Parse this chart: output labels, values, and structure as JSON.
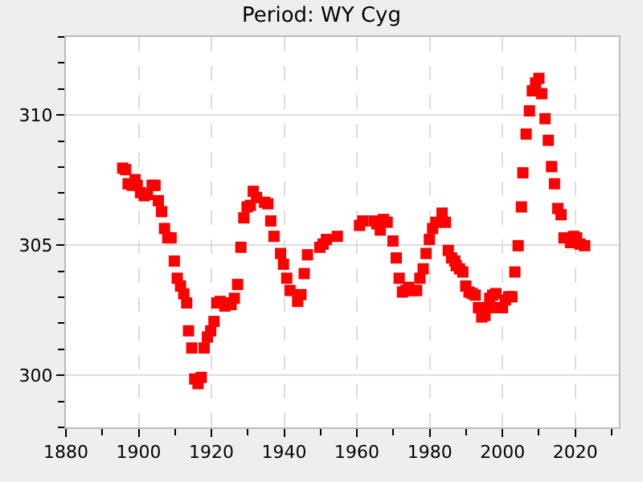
{
  "chart_data": {
    "type": "scatter",
    "title": "Period: WY Cyg",
    "x": [
      1895.6,
      1896.4,
      1897.1,
      1898.2,
      1899.0,
      1899.6,
      1900.5,
      1901.5,
      1902.4,
      1903.7,
      1904.5,
      1905.4,
      1906.3,
      1907.1,
      1908.0,
      1908.9,
      1909.8,
      1910.6,
      1911.5,
      1912.4,
      1913.2,
      1913.7,
      1914.6,
      1915.4,
      1916.3,
      1917.2,
      1918.0,
      1918.9,
      1919.8,
      1920.7,
      1921.5,
      1922.4,
      1923.7,
      1924.6,
      1925.4,
      1926.3,
      1927.2,
      1928.1,
      1928.9,
      1929.8,
      1930.7,
      1931.5,
      1932.4,
      1934.6,
      1935.5,
      1936.3,
      1937.2,
      1939.0,
      1939.8,
      1940.7,
      1941.6,
      1943.7,
      1944.6,
      1945.5,
      1946.4,
      1949.8,
      1950.7,
      1951.6,
      1954.6,
      1960.7,
      1961.6,
      1964.7,
      1965.5,
      1966.4,
      1967.3,
      1968.3,
      1969.9,
      1970.8,
      1971.6,
      1972.5,
      1973.4,
      1974.2,
      1975.6,
      1976.4,
      1977.3,
      1978.2,
      1979.0,
      1979.9,
      1980.8,
      1981.7,
      1983.4,
      1984.3,
      1985.1,
      1986.0,
      1986.9,
      1987.3,
      1988.2,
      1989.1,
      1989.9,
      1990.8,
      1991.7,
      1992.5,
      1993.4,
      1994.3,
      1995.2,
      1996.0,
      1996.5,
      1997.3,
      1998.2,
      1999.1,
      2000.0,
      2000.8,
      2001.7,
      2002.6,
      2003.4,
      2004.3,
      2005.2,
      2005.6,
      2006.5,
      2007.4,
      2008.2,
      2009.1,
      2010.0,
      2010.8,
      2011.7,
      2012.6,
      2013.5,
      2014.3,
      2015.2,
      2016.1,
      2016.9,
      2018.7,
      2019.6,
      2020.4,
      2021.3,
      2022.6
    ],
    "series": [
      {
        "color": "#ff0000",
        "values": [
          307.96,
          307.9,
          307.36,
          307.3,
          307.52,
          307.3,
          307.02,
          306.9,
          306.95,
          307.3,
          307.3,
          306.71,
          306.29,
          305.64,
          305.28,
          305.28,
          304.39,
          303.73,
          303.43,
          303.13,
          302.78,
          301.71,
          301.05,
          299.86,
          299.68,
          299.92,
          301.05,
          301.47,
          301.71,
          302.07,
          302.78,
          302.84,
          302.66,
          302.78,
          302.72,
          302.96,
          303.49,
          304.92,
          306.05,
          306.47,
          306.53,
          307.07,
          306.83,
          306.65,
          306.59,
          305.93,
          305.34,
          304.68,
          304.27,
          303.73,
          303.26,
          302.84,
          303.1,
          303.91,
          304.63,
          304.92,
          305.04,
          305.22,
          305.34,
          305.76,
          305.93,
          305.93,
          305.82,
          305.58,
          305.99,
          305.88,
          305.16,
          304.51,
          303.73,
          303.2,
          303.26,
          303.38,
          303.26,
          303.26,
          303.73,
          304.09,
          304.68,
          305.22,
          305.64,
          305.88,
          306.23,
          305.88,
          304.8,
          304.51,
          304.39,
          304.21,
          304.09,
          303.97,
          303.43,
          303.2,
          303.14,
          303.08,
          302.6,
          302.24,
          302.3,
          302.6,
          302.96,
          303.08,
          303.14,
          302.6,
          302.6,
          302.9,
          303.02,
          303.02,
          303.97,
          304.98,
          306.47,
          307.78,
          309.27,
          310.16,
          310.93,
          311.23,
          311.41,
          310.82,
          309.86,
          309.03,
          308.02,
          307.36,
          306.41,
          306.17,
          305.28,
          305.1,
          305.34,
          305.28,
          305.04,
          304.98
        ]
      }
    ],
    "marker": "square",
    "grid": true,
    "xlim": [
      1880,
      2032
    ],
    "xticks": [
      1880,
      {
        "value": 1890,
        "label": null
      },
      1900,
      {
        "value": 1910,
        "label": null
      },
      1920,
      {
        "value": 1930,
        "label": null
      },
      1940,
      {
        "value": 1950,
        "label": null
      },
      1960,
      {
        "value": 1970,
        "label": null
      },
      1980,
      {
        "value": 1990,
        "label": null
      },
      2000,
      {
        "value": 2010,
        "label": null
      },
      2020,
      {
        "value": 2030,
        "label": null
      }
    ],
    "ylim": [
      298,
      313
    ],
    "yticks": [
      {
        "value": 298,
        "label": null
      },
      {
        "value": 299,
        "label": null
      },
      300,
      {
        "value": 301,
        "label": null
      },
      {
        "value": 302,
        "label": null
      },
      {
        "value": 303,
        "label": null
      },
      {
        "value": 304,
        "label": null
      },
      305,
      {
        "value": 306,
        "label": null
      },
      {
        "value": 307,
        "label": null
      },
      {
        "value": 308,
        "label": null
      },
      {
        "value": 309,
        "label": null
      },
      310,
      {
        "value": 311,
        "label": null
      },
      {
        "value": 312,
        "label": null
      },
      {
        "value": 313,
        "label": null
      }
    ]
  }
}
